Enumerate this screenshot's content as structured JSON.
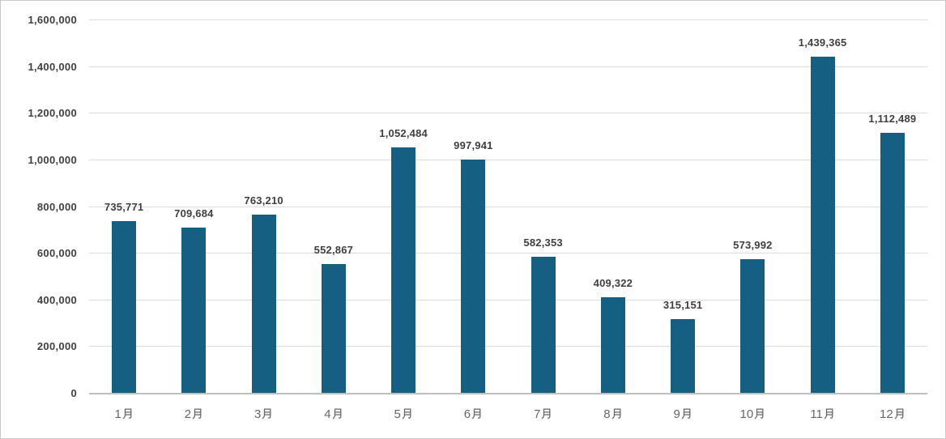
{
  "chart_data": {
    "type": "bar",
    "title": "",
    "xlabel": "",
    "ylabel": "",
    "categories": [
      "1月",
      "2月",
      "3月",
      "4月",
      "5月",
      "6月",
      "7月",
      "8月",
      "9月",
      "10月",
      "11月",
      "12月"
    ],
    "values": [
      735771,
      709684,
      763210,
      552867,
      1052484,
      997941,
      582353,
      409322,
      315151,
      573992,
      1439365,
      1112489
    ],
    "data_labels": [
      "735,771",
      "709,684",
      "763,210",
      "552,867",
      "1,052,484",
      "997,941",
      "582,353",
      "409,322",
      "315,151",
      "573,992",
      "1,439,365",
      "1,112,489"
    ],
    "ylim": [
      0,
      1600000
    ],
    "ytick_step": 200000,
    "yticks": [
      "1,600,000",
      "1,400,000",
      "1,200,000",
      "1,000,000",
      "800,000",
      "600,000",
      "400,000",
      "200,000",
      "0"
    ],
    "grid": true,
    "legend": false,
    "colors": {
      "bar": "#156082",
      "gridline": "#dbdbdb",
      "axis_line": "#bfbfbf",
      "value_label": "#3f3f3f",
      "y_tick_label": "#3f3f3f",
      "x_tick_label": "#666666",
      "chart_border": "#c9c9c9",
      "background": "#ffffff"
    }
  }
}
